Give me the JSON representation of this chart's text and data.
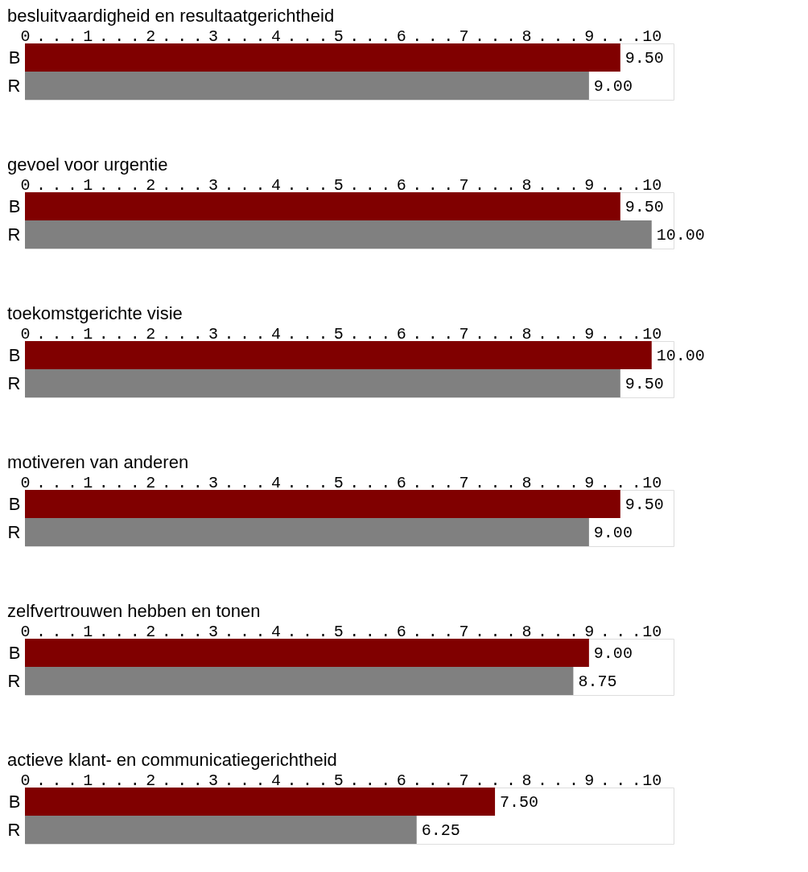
{
  "chart_data": [
    {
      "type": "bar",
      "orientation": "horizontal",
      "title": "besluitvaardigheid en resultaatgerichtheid",
      "categories": [
        "B",
        "R"
      ],
      "values": [
        9.5,
        9.0
      ],
      "colors": [
        "#800000",
        "#808080"
      ],
      "value_labels": [
        "9.50",
        "9.00"
      ],
      "xlim": [
        0,
        10.35
      ],
      "xticks": [
        0,
        {
          "value": 0.25,
          "label": "."
        },
        {
          "value": 0.5,
          "label": "."
        },
        {
          "value": 0.75,
          "label": "."
        },
        1,
        {
          "value": 1.25,
          "label": "."
        },
        {
          "value": 1.5,
          "label": "."
        },
        {
          "value": 1.75,
          "label": "."
        },
        2,
        {
          "value": 2.25,
          "label": "."
        },
        {
          "value": 2.5,
          "label": "."
        },
        {
          "value": 2.75,
          "label": "."
        },
        3,
        {
          "value": 3.25,
          "label": "."
        },
        {
          "value": 3.5,
          "label": "."
        },
        {
          "value": 3.75,
          "label": "."
        },
        4,
        {
          "value": 4.25,
          "label": "."
        },
        {
          "value": 4.5,
          "label": "."
        },
        {
          "value": 4.75,
          "label": "."
        },
        5,
        {
          "value": 5.25,
          "label": "."
        },
        {
          "value": 5.5,
          "label": "."
        },
        {
          "value": 5.75,
          "label": "."
        },
        6,
        {
          "value": 6.25,
          "label": "."
        },
        {
          "value": 6.5,
          "label": "."
        },
        {
          "value": 6.75,
          "label": "."
        },
        7,
        {
          "value": 7.25,
          "label": "."
        },
        {
          "value": 7.5,
          "label": "."
        },
        {
          "value": 7.75,
          "label": "."
        },
        8,
        {
          "value": 8.25,
          "label": "."
        },
        {
          "value": 8.5,
          "label": "."
        },
        {
          "value": 8.75,
          "label": "."
        },
        9,
        {
          "value": 9.25,
          "label": "."
        },
        {
          "value": 9.5,
          "label": "."
        },
        {
          "value": 9.75,
          "label": "."
        },
        10
      ]
    },
    {
      "type": "bar",
      "orientation": "horizontal",
      "title": "gevoel voor urgentie",
      "categories": [
        "B",
        "R"
      ],
      "values": [
        9.5,
        10.0
      ],
      "colors": [
        "#800000",
        "#808080"
      ],
      "value_labels": [
        "9.50",
        "10.00"
      ],
      "xlim": [
        0,
        10.35
      ],
      "xticks": [
        0,
        {
          "value": 0.25,
          "label": "."
        },
        {
          "value": 0.5,
          "label": "."
        },
        {
          "value": 0.75,
          "label": "."
        },
        1,
        {
          "value": 1.25,
          "label": "."
        },
        {
          "value": 1.5,
          "label": "."
        },
        {
          "value": 1.75,
          "label": "."
        },
        2,
        {
          "value": 2.25,
          "label": "."
        },
        {
          "value": 2.5,
          "label": "."
        },
        {
          "value": 2.75,
          "label": "."
        },
        3,
        {
          "value": 3.25,
          "label": "."
        },
        {
          "value": 3.5,
          "label": "."
        },
        {
          "value": 3.75,
          "label": "."
        },
        4,
        {
          "value": 4.25,
          "label": "."
        },
        {
          "value": 4.5,
          "label": "."
        },
        {
          "value": 4.75,
          "label": "."
        },
        5,
        {
          "value": 5.25,
          "label": "."
        },
        {
          "value": 5.5,
          "label": "."
        },
        {
          "value": 5.75,
          "label": "."
        },
        6,
        {
          "value": 6.25,
          "label": "."
        },
        {
          "value": 6.5,
          "label": "."
        },
        {
          "value": 6.75,
          "label": "."
        },
        7,
        {
          "value": 7.25,
          "label": "."
        },
        {
          "value": 7.5,
          "label": "."
        },
        {
          "value": 7.75,
          "label": "."
        },
        8,
        {
          "value": 8.25,
          "label": "."
        },
        {
          "value": 8.5,
          "label": "."
        },
        {
          "value": 8.75,
          "label": "."
        },
        9,
        {
          "value": 9.25,
          "label": "."
        },
        {
          "value": 9.5,
          "label": "."
        },
        {
          "value": 9.75,
          "label": "."
        },
        10
      ]
    },
    {
      "type": "bar",
      "orientation": "horizontal",
      "title": "toekomstgerichte visie",
      "categories": [
        "B",
        "R"
      ],
      "values": [
        10.0,
        9.5
      ],
      "colors": [
        "#800000",
        "#808080"
      ],
      "value_labels": [
        "10.00",
        "9.50"
      ],
      "xlim": [
        0,
        10.35
      ],
      "xticks": [
        0,
        {
          "value": 0.25,
          "label": "."
        },
        {
          "value": 0.5,
          "label": "."
        },
        {
          "value": 0.75,
          "label": "."
        },
        1,
        {
          "value": 1.25,
          "label": "."
        },
        {
          "value": 1.5,
          "label": "."
        },
        {
          "value": 1.75,
          "label": "."
        },
        2,
        {
          "value": 2.25,
          "label": "."
        },
        {
          "value": 2.5,
          "label": "."
        },
        {
          "value": 2.75,
          "label": "."
        },
        3,
        {
          "value": 3.25,
          "label": "."
        },
        {
          "value": 3.5,
          "label": "."
        },
        {
          "value": 3.75,
          "label": "."
        },
        4,
        {
          "value": 4.25,
          "label": "."
        },
        {
          "value": 4.5,
          "label": "."
        },
        {
          "value": 4.75,
          "label": "."
        },
        5,
        {
          "value": 5.25,
          "label": "."
        },
        {
          "value": 5.5,
          "label": "."
        },
        {
          "value": 5.75,
          "label": "."
        },
        6,
        {
          "value": 6.25,
          "label": "."
        },
        {
          "value": 6.5,
          "label": "."
        },
        {
          "value": 6.75,
          "label": "."
        },
        7,
        {
          "value": 7.25,
          "label": "."
        },
        {
          "value": 7.5,
          "label": "."
        },
        {
          "value": 7.75,
          "label": "."
        },
        8,
        {
          "value": 8.25,
          "label": "."
        },
        {
          "value": 8.5,
          "label": "."
        },
        {
          "value": 8.75,
          "label": "."
        },
        9,
        {
          "value": 9.25,
          "label": "."
        },
        {
          "value": 9.5,
          "label": "."
        },
        {
          "value": 9.75,
          "label": "."
        },
        10
      ]
    },
    {
      "type": "bar",
      "orientation": "horizontal",
      "title": "motiveren van anderen",
      "categories": [
        "B",
        "R"
      ],
      "values": [
        9.5,
        9.0
      ],
      "colors": [
        "#800000",
        "#808080"
      ],
      "value_labels": [
        "9.50",
        "9.00"
      ],
      "xlim": [
        0,
        10.35
      ],
      "xticks": [
        0,
        {
          "value": 0.25,
          "label": "."
        },
        {
          "value": 0.5,
          "label": "."
        },
        {
          "value": 0.75,
          "label": "."
        },
        1,
        {
          "value": 1.25,
          "label": "."
        },
        {
          "value": 1.5,
          "label": "."
        },
        {
          "value": 1.75,
          "label": "."
        },
        2,
        {
          "value": 2.25,
          "label": "."
        },
        {
          "value": 2.5,
          "label": "."
        },
        {
          "value": 2.75,
          "label": "."
        },
        3,
        {
          "value": 3.25,
          "label": "."
        },
        {
          "value": 3.5,
          "label": "."
        },
        {
          "value": 3.75,
          "label": "."
        },
        4,
        {
          "value": 4.25,
          "label": "."
        },
        {
          "value": 4.5,
          "label": "."
        },
        {
          "value": 4.75,
          "label": "."
        },
        5,
        {
          "value": 5.25,
          "label": "."
        },
        {
          "value": 5.5,
          "label": "."
        },
        {
          "value": 5.75,
          "label": "."
        },
        6,
        {
          "value": 6.25,
          "label": "."
        },
        {
          "value": 6.5,
          "label": "."
        },
        {
          "value": 6.75,
          "label": "."
        },
        7,
        {
          "value": 7.25,
          "label": "."
        },
        {
          "value": 7.5,
          "label": "."
        },
        {
          "value": 7.75,
          "label": "."
        },
        8,
        {
          "value": 8.25,
          "label": "."
        },
        {
          "value": 8.5,
          "label": "."
        },
        {
          "value": 8.75,
          "label": "."
        },
        9,
        {
          "value": 9.25,
          "label": "."
        },
        {
          "value": 9.5,
          "label": "."
        },
        {
          "value": 9.75,
          "label": "."
        },
        10
      ]
    },
    {
      "type": "bar",
      "orientation": "horizontal",
      "title": "zelfvertrouwen hebben en tonen",
      "categories": [
        "B",
        "R"
      ],
      "values": [
        9.0,
        8.75
      ],
      "colors": [
        "#800000",
        "#808080"
      ],
      "value_labels": [
        "9.00",
        "8.75"
      ],
      "xlim": [
        0,
        10.35
      ],
      "xticks": [
        0,
        {
          "value": 0.25,
          "label": "."
        },
        {
          "value": 0.5,
          "label": "."
        },
        {
          "value": 0.75,
          "label": "."
        },
        1,
        {
          "value": 1.25,
          "label": "."
        },
        {
          "value": 1.5,
          "label": "."
        },
        {
          "value": 1.75,
          "label": "."
        },
        2,
        {
          "value": 2.25,
          "label": "."
        },
        {
          "value": 2.5,
          "label": "."
        },
        {
          "value": 2.75,
          "label": "."
        },
        3,
        {
          "value": 3.25,
          "label": "."
        },
        {
          "value": 3.5,
          "label": "."
        },
        {
          "value": 3.75,
          "label": "."
        },
        4,
        {
          "value": 4.25,
          "label": "."
        },
        {
          "value": 4.5,
          "label": "."
        },
        {
          "value": 4.75,
          "label": "."
        },
        5,
        {
          "value": 5.25,
          "label": "."
        },
        {
          "value": 5.5,
          "label": "."
        },
        {
          "value": 5.75,
          "label": "."
        },
        6,
        {
          "value": 6.25,
          "label": "."
        },
        {
          "value": 6.5,
          "label": "."
        },
        {
          "value": 6.75,
          "label": "."
        },
        7,
        {
          "value": 7.25,
          "label": "."
        },
        {
          "value": 7.5,
          "label": "."
        },
        {
          "value": 7.75,
          "label": "."
        },
        8,
        {
          "value": 8.25,
          "label": "."
        },
        {
          "value": 8.5,
          "label": "."
        },
        {
          "value": 8.75,
          "label": "."
        },
        9,
        {
          "value": 9.25,
          "label": "."
        },
        {
          "value": 9.5,
          "label": "."
        },
        {
          "value": 9.75,
          "label": "."
        },
        10
      ]
    },
    {
      "type": "bar",
      "orientation": "horizontal",
      "title": "actieve klant- en communicatiegerichtheid",
      "categories": [
        "B",
        "R"
      ],
      "values": [
        7.5,
        6.25
      ],
      "colors": [
        "#800000",
        "#808080"
      ],
      "value_labels": [
        "7.50",
        "6.25"
      ],
      "xlim": [
        0,
        10.35
      ],
      "xticks": [
        0,
        {
          "value": 0.25,
          "label": "."
        },
        {
          "value": 0.5,
          "label": "."
        },
        {
          "value": 0.75,
          "label": "."
        },
        1,
        {
          "value": 1.25,
          "label": "."
        },
        {
          "value": 1.5,
          "label": "."
        },
        {
          "value": 1.75,
          "label": "."
        },
        2,
        {
          "value": 2.25,
          "label": "."
        },
        {
          "value": 2.5,
          "label": "."
        },
        {
          "value": 2.75,
          "label": "."
        },
        3,
        {
          "value": 3.25,
          "label": "."
        },
        {
          "value": 3.5,
          "label": "."
        },
        {
          "value": 3.75,
          "label": "."
        },
        4,
        {
          "value": 4.25,
          "label": "."
        },
        {
          "value": 4.5,
          "label": "."
        },
        {
          "value": 4.75,
          "label": "."
        },
        5,
        {
          "value": 5.25,
          "label": "."
        },
        {
          "value": 5.5,
          "label": "."
        },
        {
          "value": 5.75,
          "label": "."
        },
        6,
        {
          "value": 6.25,
          "label": "."
        },
        {
          "value": 6.5,
          "label": "."
        },
        {
          "value": 6.75,
          "label": "."
        },
        7,
        {
          "value": 7.25,
          "label": "."
        },
        {
          "value": 7.5,
          "label": "."
        },
        {
          "value": 7.75,
          "label": "."
        },
        8,
        {
          "value": 8.25,
          "label": "."
        },
        {
          "value": 8.5,
          "label": "."
        },
        {
          "value": 8.75,
          "label": "."
        },
        9,
        {
          "value": 9.25,
          "label": "."
        },
        {
          "value": 9.5,
          "label": "."
        },
        {
          "value": 9.75,
          "label": "."
        },
        10
      ]
    }
  ]
}
